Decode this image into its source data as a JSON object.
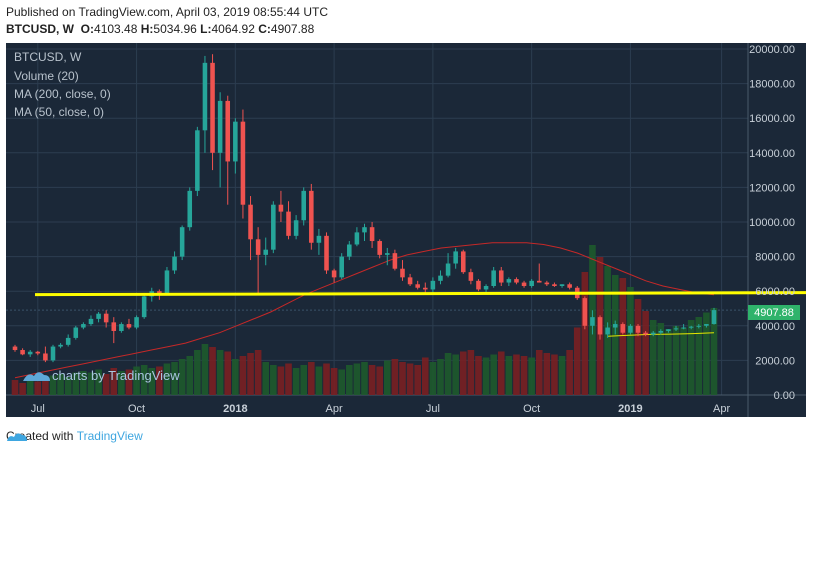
{
  "header": {
    "published": "Published on TradingView.com, April 03, 2019 08:55:44 UTC",
    "symbol": "BTCUSD, W",
    "o_label": "O:",
    "o_val": "4103.48",
    "h_label": "H:",
    "h_val": "5034.96",
    "l_label": "L:",
    "l_val": "4064.92",
    "c_label": "C:",
    "c_val": "4907.88"
  },
  "legend": {
    "symbol": "BTCUSD, W",
    "volume": "Volume (20)",
    "ma200": "MA (200, close, 0)",
    "ma50": "MA (50, close, 0)"
  },
  "watermark": "charts by TradingView",
  "footer": {
    "created": "Created with",
    "brand": "TradingView"
  },
  "colors": {
    "up": "#26a69a",
    "down": "#ef5350",
    "bg": "#1b2838",
    "ma200": "#c62828",
    "ma50": "#e6e600",
    "support": "#ffff00",
    "price_tag": "#2fb36b"
  },
  "chart_data": {
    "type": "candlestick",
    "interval": "W",
    "ylim": [
      0,
      20000
    ],
    "y_ticks": [
      0,
      2000,
      4000,
      6000,
      8000,
      10000,
      12000,
      14000,
      16000,
      18000,
      20000
    ],
    "y_tick_labels": [
      "0.00",
      "2000.00",
      "4000.00",
      "6000.00",
      "8000.00",
      "10000.00",
      "12000.00",
      "14000.00",
      "16000.00",
      "18000.00",
      "20000.00"
    ],
    "x_labels": [
      {
        "label": "Jul",
        "week": 3,
        "bold": false
      },
      {
        "label": "Oct",
        "week": 16,
        "bold": false
      },
      {
        "label": "2018",
        "week": 29,
        "bold": true
      },
      {
        "label": "Apr",
        "week": 42,
        "bold": false
      },
      {
        "label": "Jul",
        "week": 55,
        "bold": false
      },
      {
        "label": "Oct",
        "week": 68,
        "bold": false
      },
      {
        "label": "2019",
        "week": 81,
        "bold": true
      },
      {
        "label": "Apr",
        "week": 93,
        "bold": false
      }
    ],
    "last_price": "4907.88",
    "support_level": 5800,
    "candles": [
      [
        2800,
        2900,
        2500,
        2600
      ],
      [
        2600,
        2700,
        2300,
        2350
      ],
      [
        2350,
        2600,
        2200,
        2500
      ],
      [
        2500,
        2550,
        2300,
        2400
      ],
      [
        2400,
        2800,
        1900,
        2000
      ],
      [
        2000,
        2900,
        1900,
        2800
      ],
      [
        2800,
        3000,
        2700,
        2900
      ],
      [
        2900,
        3500,
        2800,
        3300
      ],
      [
        3300,
        4000,
        3200,
        3900
      ],
      [
        3900,
        4200,
        3800,
        4100
      ],
      [
        4100,
        4600,
        4000,
        4400
      ],
      [
        4400,
        4800,
        4200,
        4700
      ],
      [
        4700,
        4900,
        3900,
        4200
      ],
      [
        4200,
        4500,
        3000,
        3700
      ],
      [
        3700,
        4200,
        3600,
        4100
      ],
      [
        4100,
        4400,
        3800,
        3900
      ],
      [
        3900,
        4600,
        3800,
        4500
      ],
      [
        4500,
        5900,
        4400,
        5700
      ],
      [
        5700,
        6200,
        5400,
        6000
      ],
      [
        6000,
        6100,
        5500,
        5900
      ],
      [
        5900,
        7400,
        5800,
        7200
      ],
      [
        7200,
        8300,
        7000,
        8000
      ],
      [
        8000,
        9800,
        7800,
        9700
      ],
      [
        9700,
        12000,
        9500,
        11800
      ],
      [
        11800,
        15500,
        11500,
        15300
      ],
      [
        15300,
        19600,
        14000,
        19200
      ],
      [
        19200,
        19700,
        13000,
        14000
      ],
      [
        14000,
        17500,
        12000,
        17000
      ],
      [
        17000,
        17300,
        11000,
        13500
      ],
      [
        13500,
        16000,
        12800,
        15800
      ],
      [
        15800,
        16500,
        10200,
        11000
      ],
      [
        11000,
        11500,
        7800,
        9000
      ],
      [
        9000,
        9700,
        5900,
        8100
      ],
      [
        8100,
        9100,
        7500,
        8400
      ],
      [
        8400,
        11200,
        8200,
        11000
      ],
      [
        11000,
        11800,
        10000,
        10600
      ],
      [
        10600,
        11200,
        9000,
        9200
      ],
      [
        9200,
        10400,
        9000,
        10100
      ],
      [
        10100,
        12000,
        9800,
        11800
      ],
      [
        11800,
        12200,
        8400,
        8800
      ],
      [
        8800,
        9600,
        8100,
        9200
      ],
      [
        9200,
        9400,
        7000,
        7200
      ],
      [
        7200,
        7300,
        6500,
        6800
      ],
      [
        6800,
        8200,
        6700,
        8000
      ],
      [
        8000,
        8900,
        7800,
        8700
      ],
      [
        8700,
        9700,
        8600,
        9400
      ],
      [
        9400,
        9900,
        8900,
        9700
      ],
      [
        9700,
        10000,
        8500,
        8900
      ],
      [
        8900,
        9000,
        7900,
        8100
      ],
      [
        8100,
        8500,
        7500,
        8200
      ],
      [
        8200,
        8400,
        7200,
        7300
      ],
      [
        7300,
        7800,
        6600,
        6800
      ],
      [
        6800,
        7000,
        6300,
        6400
      ],
      [
        6400,
        6600,
        6100,
        6200
      ],
      [
        6200,
        6500,
        5800,
        6100
      ],
      [
        6100,
        6800,
        5900,
        6600
      ],
      [
        6600,
        7200,
        6400,
        6900
      ],
      [
        6900,
        8200,
        6800,
        7600
      ],
      [
        7600,
        8500,
        7300,
        8300
      ],
      [
        8300,
        8400,
        7000,
        7100
      ],
      [
        7100,
        7300,
        6400,
        6600
      ],
      [
        6600,
        6700,
        6000,
        6100
      ],
      [
        6100,
        6400,
        5900,
        6300
      ],
      [
        6300,
        7400,
        6200,
        7200
      ],
      [
        7200,
        7400,
        6300,
        6500
      ],
      [
        6500,
        6800,
        6300,
        6700
      ],
      [
        6700,
        6800,
        6400,
        6500
      ],
      [
        6500,
        6600,
        6200,
        6300
      ],
      [
        6300,
        6700,
        6200,
        6600
      ],
      [
        6600,
        7600,
        6500,
        6500
      ],
      [
        6500,
        6600,
        6300,
        6400
      ],
      [
        6400,
        6500,
        6250,
        6300
      ],
      [
        6300,
        6400,
        6200,
        6400
      ],
      [
        6400,
        6500,
        6100,
        6200
      ],
      [
        6200,
        6300,
        5500,
        5600
      ],
      [
        5600,
        5700,
        3800,
        4000
      ],
      [
        4000,
        4900,
        3500,
        4500
      ],
      [
        4500,
        4600,
        3200,
        3500
      ],
      [
        3500,
        4200,
        3300,
        3900
      ],
      [
        3900,
        4300,
        3500,
        4100
      ],
      [
        4100,
        4200,
        3500,
        3600
      ],
      [
        3600,
        4100,
        3500,
        4000
      ],
      [
        4000,
        4100,
        3400,
        3600
      ],
      [
        3600,
        3700,
        3400,
        3500
      ],
      [
        3500,
        3700,
        3400,
        3600
      ],
      [
        3600,
        3800,
        3500,
        3700
      ],
      [
        3700,
        3800,
        3600,
        3800
      ],
      [
        3800,
        4000,
        3700,
        3850
      ],
      [
        3850,
        4100,
        3800,
        3900
      ],
      [
        3900,
        4000,
        3800,
        3950
      ],
      [
        3950,
        4100,
        3850,
        4000
      ],
      [
        4000,
        4100,
        3900,
        4103
      ],
      [
        4103,
        5035,
        4065,
        4908
      ]
    ],
    "volumes": [
      0.1,
      0.08,
      0.12,
      0.09,
      0.11,
      0.13,
      0.14,
      0.12,
      0.15,
      0.16,
      0.15,
      0.17,
      0.14,
      0.18,
      0.16,
      0.17,
      0.19,
      0.2,
      0.18,
      0.19,
      0.21,
      0.22,
      0.24,
      0.26,
      0.3,
      0.34,
      0.32,
      0.3,
      0.29,
      0.24,
      0.26,
      0.28,
      0.3,
      0.22,
      0.2,
      0.19,
      0.21,
      0.18,
      0.2,
      0.22,
      0.19,
      0.21,
      0.18,
      0.17,
      0.2,
      0.21,
      0.22,
      0.2,
      0.19,
      0.23,
      0.24,
      0.22,
      0.21,
      0.2,
      0.25,
      0.22,
      0.24,
      0.28,
      0.27,
      0.29,
      0.3,
      0.26,
      0.25,
      0.27,
      0.29,
      0.26,
      0.27,
      0.26,
      0.25,
      0.3,
      0.28,
      0.27,
      0.26,
      0.3,
      0.45,
      0.82,
      1.0,
      0.92,
      0.86,
      0.8,
      0.78,
      0.72,
      0.64,
      0.56,
      0.5,
      0.48,
      0.44,
      0.46,
      0.45,
      0.5,
      0.52,
      0.55,
      0.58
    ],
    "ma200_path": [
      1.0,
      1.2,
      1.4,
      1.6,
      1.8,
      2.0,
      2.2,
      2.4,
      2.6,
      2.8,
      3.0,
      3.3,
      3.6,
      4.0,
      4.4,
      4.8,
      5.3,
      5.8,
      6.2,
      6.6,
      7.0,
      7.4,
      7.8,
      8.1,
      8.3,
      8.5,
      8.6,
      8.7,
      8.8,
      8.8,
      8.8,
      8.7,
      8.5,
      8.2,
      7.8,
      7.4,
      7.0,
      6.6,
      6.3,
      6.1,
      5.9,
      5.8
    ],
    "ma50_path": [
      3.4,
      3.45,
      3.5,
      3.52,
      3.55,
      3.6
    ]
  }
}
